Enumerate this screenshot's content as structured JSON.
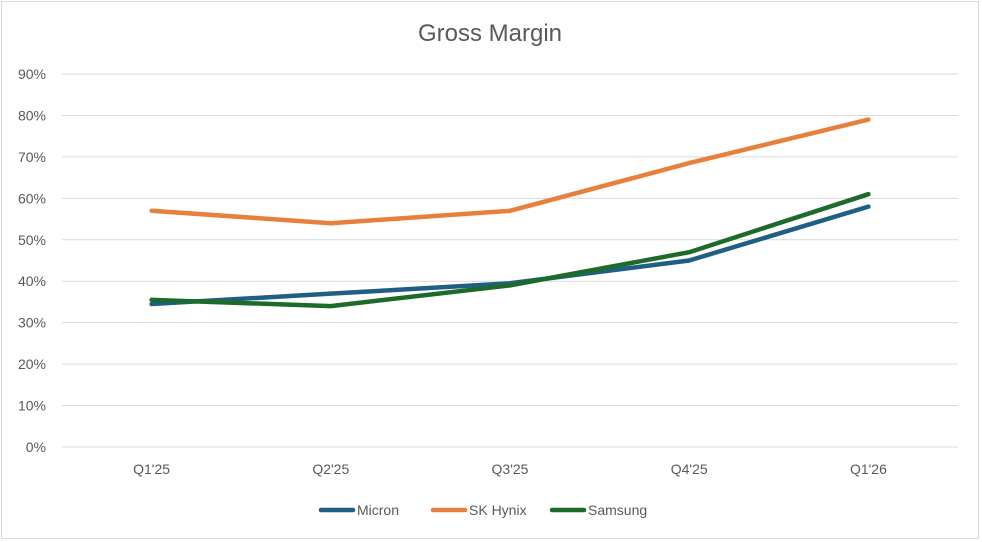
{
  "chart_data": {
    "type": "line",
    "title": "Gross Margin",
    "categories": [
      "Q1'25",
      "Q2'25",
      "Q3'25",
      "Q4'25",
      "Q1'26"
    ],
    "y_ticks": [
      "0%",
      "10%",
      "20%",
      "30%",
      "40%",
      "50%",
      "60%",
      "70%",
      "80%",
      "90%"
    ],
    "ylim": [
      0,
      90
    ],
    "y_unit": "%",
    "grid": true,
    "legend_position": "bottom",
    "series": [
      {
        "name": "Micron",
        "color": "#1f5f84",
        "values": [
          34.5,
          37,
          39.5,
          45,
          58
        ]
      },
      {
        "name": "SK Hynix",
        "color": "#e8803d",
        "values": [
          57,
          54,
          57,
          68.5,
          79
        ]
      },
      {
        "name": "Samsung",
        "color": "#1d6b2b",
        "values": [
          35.5,
          34,
          39,
          47,
          61
        ]
      }
    ]
  }
}
